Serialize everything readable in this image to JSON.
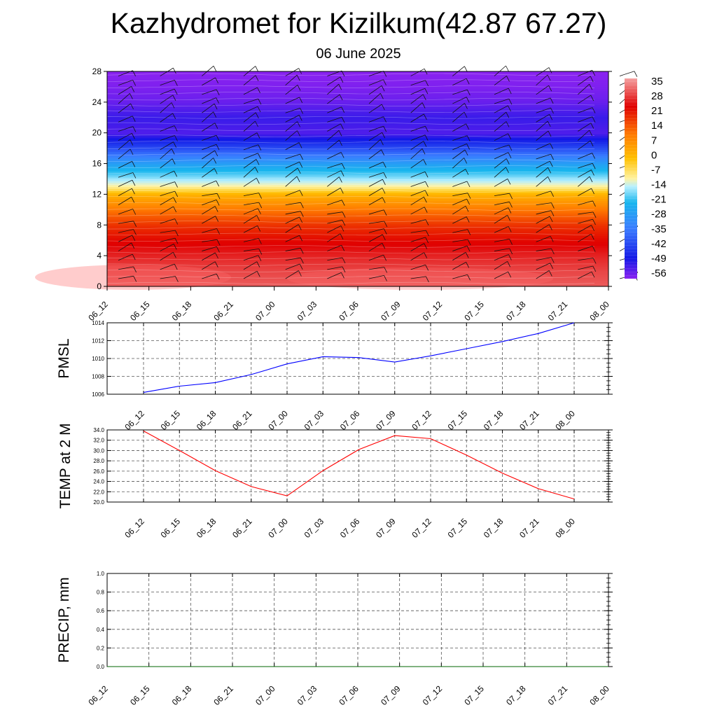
{
  "header": {
    "title": "Kazhydromet for Kizilkum(42.87 67.27)",
    "subtitle": "06 June 2025"
  },
  "chart_data": [
    {
      "type": "heatmap",
      "y_ticks": [
        "0",
        "4",
        "8",
        "12",
        "16",
        "20",
        "24",
        "28"
      ],
      "ylim": [
        0,
        28
      ],
      "x_ticks": [
        "06_12",
        "06_15",
        "06_18",
        "06_21",
        "07_00",
        "07_03",
        "07_06",
        "07_09",
        "07_12",
        "07_15",
        "07_18",
        "07_21",
        "08_00"
      ],
      "colorbar_labels": [
        "35",
        "28",
        "21",
        "14",
        "7",
        "0",
        "-7",
        "-14",
        "-21",
        "-28",
        "-35",
        "-42",
        "-49",
        "-56"
      ],
      "colorbar_range": [
        -63,
        38
      ],
      "profile": {
        "levels": [
          0,
          2,
          4,
          6,
          8,
          10,
          12,
          13,
          14,
          16,
          18,
          20,
          22,
          24,
          26,
          28
        ],
        "values": [
          32,
          30,
          27,
          23,
          18,
          10,
          0,
          -12,
          -18,
          -30,
          -45,
          -58,
          -56,
          -60,
          -62,
          -63
        ]
      },
      "colors": {
        "red": "#e00000",
        "orange": "#ff7a00",
        "yellow": "#fff2a0",
        "cyan": "#18b6ee",
        "blue": "#1418e6",
        "violet": "#8a22f0"
      },
      "wind_barbs": true
    },
    {
      "type": "line",
      "ylabel": "PMSL",
      "ylim": [
        1006,
        1014
      ],
      "y_ticks": [
        "1006",
        "1008",
        "1010",
        "1012",
        "1014"
      ],
      "categories": [
        "06_12",
        "06_15",
        "06_18",
        "06_21",
        "07_00",
        "07_03",
        "07_06",
        "07_09",
        "07_12",
        "07_15",
        "07_18",
        "07_21",
        "08_00"
      ],
      "series": [
        {
          "values": [
            1006.2,
            1006.9,
            1007.3,
            1008.2,
            1009.4,
            1010.2,
            1010.1,
            1009.6,
            1010.3,
            1011.1,
            1011.9,
            1012.8,
            1014.0
          ],
          "color": "#0000ff"
        }
      ],
      "grid": true
    },
    {
      "type": "line",
      "ylabel": "TEMP at 2 M",
      "ylim": [
        20,
        34
      ],
      "y_ticks": [
        "20.0",
        "22.0",
        "24.0",
        "26.0",
        "28.0",
        "30.0",
        "32.0",
        "34.0"
      ],
      "categories": [
        "06_12",
        "06_15",
        "06_18",
        "06_21",
        "07_00",
        "07_03",
        "07_06",
        "07_09",
        "07_12",
        "07_15",
        "07_18",
        "07_21",
        "08_00"
      ],
      "series": [
        {
          "values": [
            33.8,
            30.0,
            26.1,
            23.0,
            21.2,
            26.1,
            30.2,
            32.9,
            32.3,
            29.1,
            25.6,
            22.6,
            20.6
          ],
          "color": "#ff0000"
        }
      ],
      "grid": true
    },
    {
      "type": "line",
      "ylabel": "PRECIP, mm",
      "ylim": [
        0,
        1
      ],
      "y_ticks": [
        "0.0",
        "0.2",
        "0.4",
        "0.6",
        "0.8",
        "1.0"
      ],
      "categories": [
        "06_12",
        "06_15",
        "06_18",
        "06_21",
        "07_00",
        "07_03",
        "07_06",
        "07_09",
        "07_12",
        "07_15",
        "07_18",
        "07_21",
        "08_00"
      ],
      "series": [
        {
          "values": [
            0,
            0,
            0,
            0,
            0,
            0,
            0,
            0,
            0,
            0,
            0,
            0,
            0
          ],
          "color": "#006400"
        }
      ],
      "grid": true
    }
  ]
}
